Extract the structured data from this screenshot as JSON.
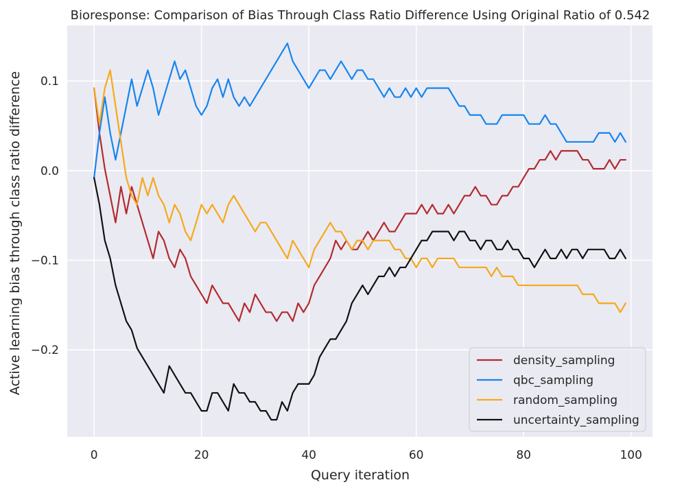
{
  "chart_data": {
    "type": "line",
    "title": "Bioresponse: Comparison of Bias Through Class Ratio Difference Using Original Ratio of 0.542",
    "xlabel": "Query iteration",
    "ylabel": "Active learning bias through class ratio difference",
    "xlim": [
      -5,
      104
    ],
    "ylim": [
      -0.297,
      0.162
    ],
    "xticks": [
      0,
      20,
      40,
      60,
      80,
      100
    ],
    "xtick_labels": [
      "0",
      "20",
      "40",
      "60",
      "80",
      "100"
    ],
    "yticks": [
      -0.2,
      -0.1,
      0.0,
      0.1
    ],
    "ytick_labels": [
      "−0.2",
      "−0.1",
      "0.0",
      "0.1"
    ],
    "grid": true,
    "legend_position": "bottom-right",
    "background": "#eaeaf2",
    "series": [
      {
        "name": "density_sampling",
        "color": "#b22a2e",
        "values": [
          0.092,
          0.042,
          0.002,
          -0.028,
          -0.058,
          -0.018,
          -0.048,
          -0.018,
          -0.038,
          -0.058,
          -0.078,
          -0.098,
          -0.068,
          -0.078,
          -0.098,
          -0.108,
          -0.088,
          -0.098,
          -0.118,
          -0.128,
          -0.138,
          -0.148,
          -0.128,
          -0.138,
          -0.148,
          -0.148,
          -0.158,
          -0.168,
          -0.148,
          -0.158,
          -0.138,
          -0.148,
          -0.158,
          -0.158,
          -0.168,
          -0.158,
          -0.158,
          -0.168,
          -0.148,
          -0.158,
          -0.148,
          -0.128,
          -0.118,
          -0.108,
          -0.098,
          -0.078,
          -0.088,
          -0.078,
          -0.088,
          -0.088,
          -0.078,
          -0.068,
          -0.078,
          -0.068,
          -0.058,
          -0.068,
          -0.068,
          -0.058,
          -0.048,
          -0.048,
          -0.048,
          -0.038,
          -0.048,
          -0.038,
          -0.048,
          -0.048,
          -0.038,
          -0.048,
          -0.038,
          -0.028,
          -0.028,
          -0.018,
          -0.028,
          -0.028,
          -0.038,
          -0.038,
          -0.028,
          -0.028,
          -0.018,
          -0.018,
          -0.008,
          0.002,
          0.002,
          0.012,
          0.012,
          0.022,
          0.012,
          0.022,
          0.022,
          0.022,
          0.022,
          0.012,
          0.012,
          0.002,
          0.002,
          0.002,
          0.012,
          0.002,
          0.012,
          0.012
        ]
      },
      {
        "name": "qbc_sampling",
        "color": "#1585ef",
        "values": [
          -0.008,
          0.042,
          0.082,
          0.042,
          0.012,
          0.042,
          0.072,
          0.102,
          0.072,
          0.092,
          0.112,
          0.092,
          0.062,
          0.082,
          0.102,
          0.122,
          0.102,
          0.112,
          0.092,
          0.072,
          0.062,
          0.072,
          0.092,
          0.102,
          0.082,
          0.102,
          0.082,
          0.072,
          0.082,
          0.072,
          0.082,
          0.092,
          0.102,
          0.112,
          0.122,
          0.132,
          0.142,
          0.122,
          0.112,
          0.102,
          0.092,
          0.102,
          0.112,
          0.112,
          0.102,
          0.112,
          0.122,
          0.112,
          0.102,
          0.112,
          0.112,
          0.102,
          0.102,
          0.092,
          0.082,
          0.092,
          0.082,
          0.082,
          0.092,
          0.082,
          0.092,
          0.082,
          0.092,
          0.092,
          0.092,
          0.092,
          0.092,
          0.082,
          0.072,
          0.072,
          0.062,
          0.062,
          0.062,
          0.052,
          0.052,
          0.052,
          0.062,
          0.062,
          0.062,
          0.062,
          0.062,
          0.052,
          0.052,
          0.052,
          0.062,
          0.052,
          0.052,
          0.042,
          0.032,
          0.032,
          0.032,
          0.032,
          0.032,
          0.032,
          0.042,
          0.042,
          0.042,
          0.032,
          0.042,
          0.032
        ]
      },
      {
        "name": "random_sampling",
        "color": "#f6a81a",
        "values": [
          0.092,
          0.052,
          0.092,
          0.112,
          0.072,
          0.032,
          -0.008,
          -0.028,
          -0.038,
          -0.008,
          -0.028,
          -0.008,
          -0.028,
          -0.038,
          -0.058,
          -0.038,
          -0.048,
          -0.068,
          -0.078,
          -0.058,
          -0.038,
          -0.048,
          -0.038,
          -0.048,
          -0.058,
          -0.038,
          -0.028,
          -0.038,
          -0.048,
          -0.058,
          -0.068,
          -0.058,
          -0.058,
          -0.068,
          -0.078,
          -0.088,
          -0.098,
          -0.078,
          -0.088,
          -0.098,
          -0.108,
          -0.088,
          -0.078,
          -0.068,
          -0.058,
          -0.068,
          -0.068,
          -0.078,
          -0.088,
          -0.078,
          -0.078,
          -0.088,
          -0.078,
          -0.078,
          -0.078,
          -0.078,
          -0.088,
          -0.088,
          -0.098,
          -0.098,
          -0.108,
          -0.098,
          -0.098,
          -0.108,
          -0.098,
          -0.098,
          -0.098,
          -0.098,
          -0.108,
          -0.108,
          -0.108,
          -0.108,
          -0.108,
          -0.108,
          -0.118,
          -0.108,
          -0.118,
          -0.118,
          -0.118,
          -0.128,
          -0.128,
          -0.128,
          -0.128,
          -0.128,
          -0.128,
          -0.128,
          -0.128,
          -0.128,
          -0.128,
          -0.128,
          -0.128,
          -0.138,
          -0.138,
          -0.138,
          -0.148,
          -0.148,
          -0.148,
          -0.148,
          -0.158,
          -0.148
        ]
      },
      {
        "name": "uncertainty_sampling",
        "color": "#111111",
        "values": [
          -0.008,
          -0.038,
          -0.078,
          -0.098,
          -0.128,
          -0.148,
          -0.168,
          -0.178,
          -0.198,
          -0.208,
          -0.218,
          -0.228,
          -0.238,
          -0.248,
          -0.218,
          -0.228,
          -0.238,
          -0.248,
          -0.248,
          -0.258,
          -0.268,
          -0.268,
          -0.248,
          -0.248,
          -0.258,
          -0.268,
          -0.238,
          -0.248,
          -0.248,
          -0.258,
          -0.258,
          -0.268,
          -0.268,
          -0.278,
          -0.278,
          -0.258,
          -0.268,
          -0.248,
          -0.238,
          -0.238,
          -0.238,
          -0.228,
          -0.208,
          -0.198,
          -0.188,
          -0.188,
          -0.178,
          -0.168,
          -0.148,
          -0.138,
          -0.128,
          -0.138,
          -0.128,
          -0.118,
          -0.118,
          -0.108,
          -0.118,
          -0.108,
          -0.108,
          -0.098,
          -0.088,
          -0.078,
          -0.078,
          -0.068,
          -0.068,
          -0.068,
          -0.068,
          -0.078,
          -0.068,
          -0.068,
          -0.078,
          -0.078,
          -0.088,
          -0.078,
          -0.078,
          -0.088,
          -0.088,
          -0.078,
          -0.088,
          -0.088,
          -0.098,
          -0.098,
          -0.108,
          -0.098,
          -0.088,
          -0.098,
          -0.098,
          -0.088,
          -0.098,
          -0.088,
          -0.088,
          -0.098,
          -0.088,
          -0.088,
          -0.088,
          -0.088,
          -0.098,
          -0.098,
          -0.088,
          -0.098
        ]
      }
    ]
  }
}
